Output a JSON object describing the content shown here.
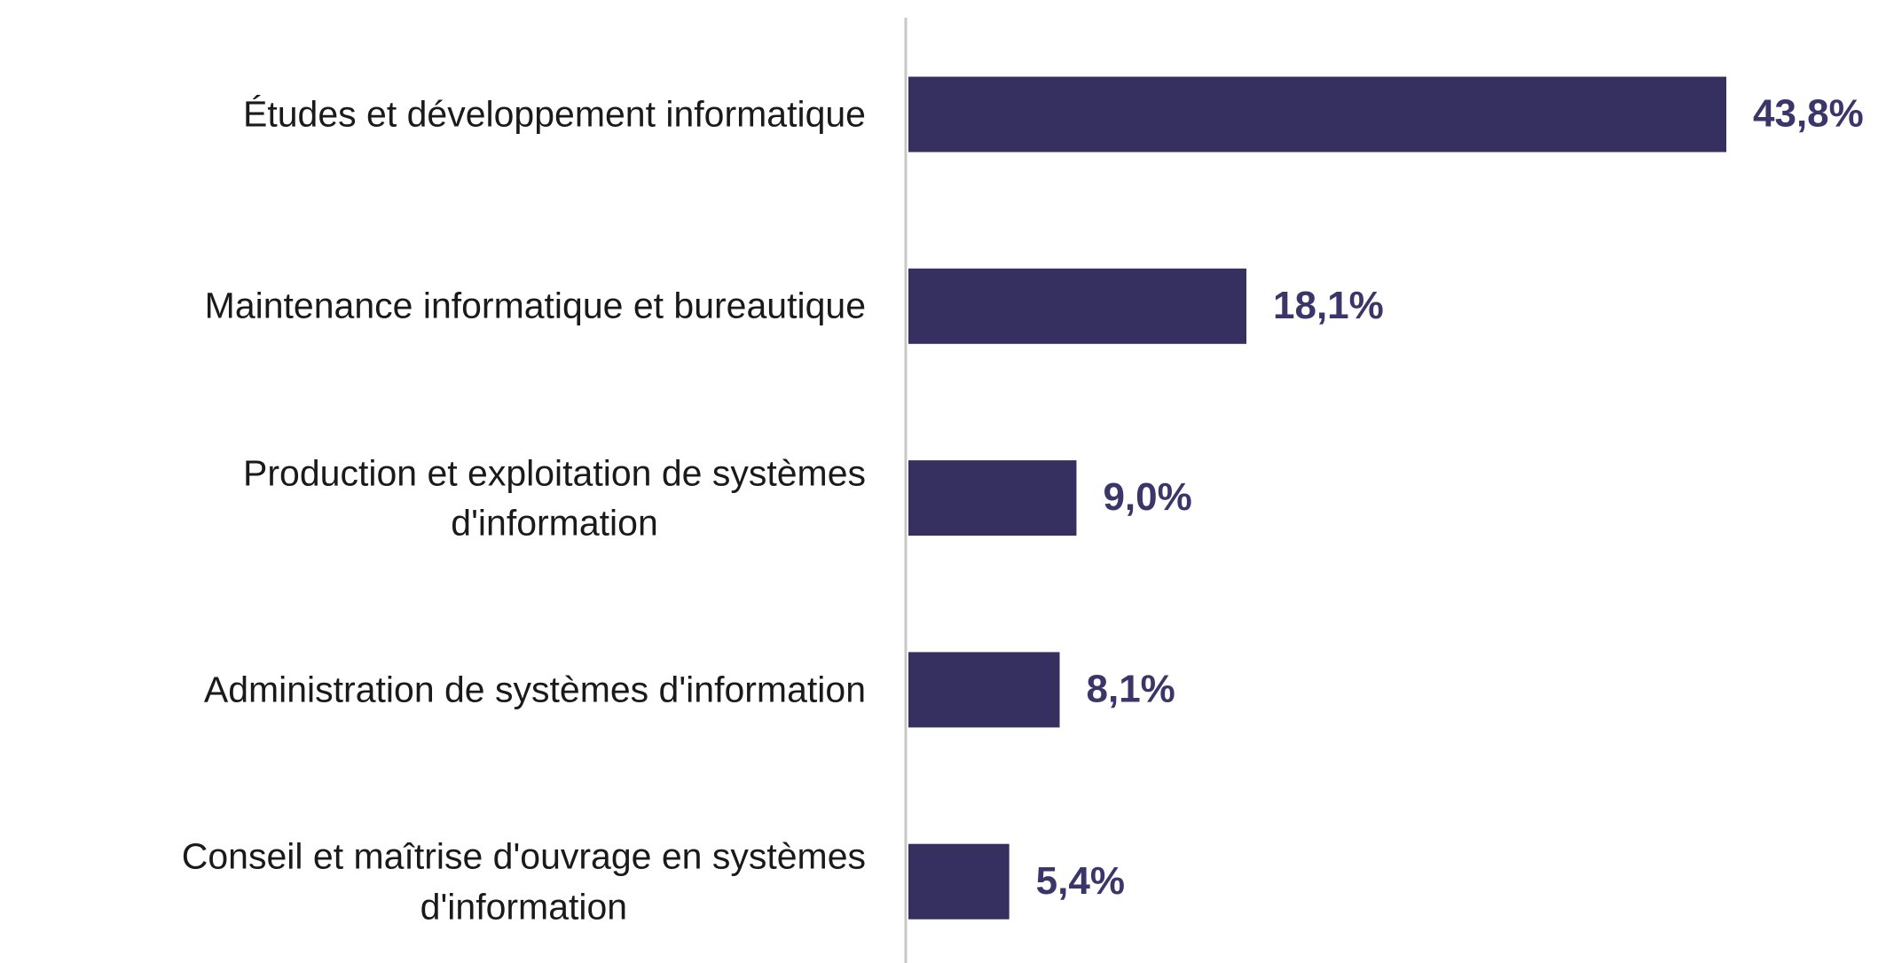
{
  "chart_data": {
    "type": "bar",
    "orientation": "horizontal",
    "categories": [
      "Études et développement informatique",
      "Maintenance informatique et bureautique",
      "Production et exploitation de systèmes\nd'information",
      "Administration de systèmes d'information",
      "Conseil et maîtrise d'ouvrage en systèmes\nd'information"
    ],
    "values": [
      43.8,
      18.1,
      9.0,
      8.1,
      5.4
    ],
    "value_labels": [
      "43,8%",
      "18,1%",
      "9,0%",
      "8,1%",
      "5,4%"
    ],
    "color": "#35305f"
  }
}
